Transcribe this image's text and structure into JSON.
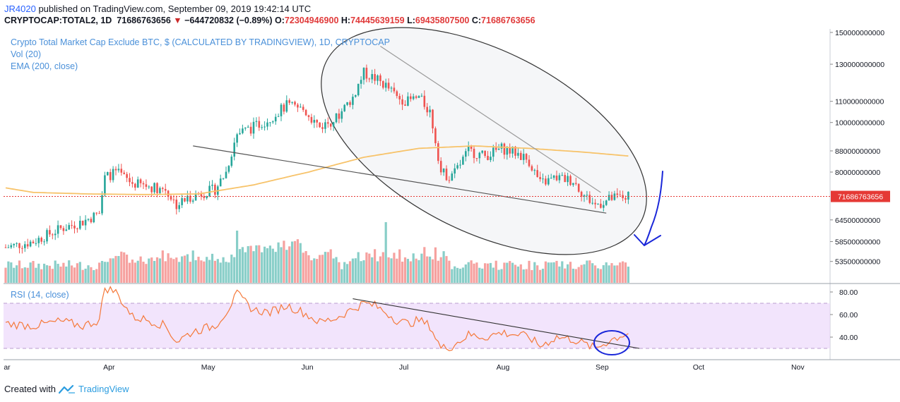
{
  "header": {
    "user": "JR4020",
    "published_text": "published on TradingView.com, September 09, 2019 19:42:14 UTC",
    "symbol_line": "CRYPTOCAP:TOTAL2, 1D",
    "last": "71686763656",
    "change": "−644720832 (−0.89%)",
    "o_label": "O:",
    "o": "72304946900",
    "h_label": "H:",
    "h": "74445639159",
    "l_label": "L:",
    "l": "69435807500",
    "c_label": "C:",
    "c": "71686763656"
  },
  "legend": {
    "title": "Crypto Total Market Cap Exclude BTC, $ (CALCULATED BY TRADINGVIEW), 1D, CRYPTOCAP",
    "volume": "Vol (20)",
    "ema": "EMA (200, close)",
    "rsi": "RSI (14, close)"
  },
  "footer": {
    "created_with": "Created with",
    "brand": "TradingView"
  },
  "colors": {
    "up": "#26a69a",
    "down": "#ef5350",
    "ema": "#f7c36a",
    "price_line": "#e53935",
    "rsi_line": "#f5793a",
    "rsi_band": "#ecd9fb",
    "annotation_blue": "#1a27d9"
  },
  "chart_data": [
    {
      "type": "candlestick",
      "title": "Crypto Total Market Cap Exclude BTC, $ (CALCULATED BY TRADINGVIEW), 1D, CRYPTOCAP",
      "scale": "log",
      "y_ticks": [
        150000000000,
        130000000000,
        110000000000,
        100000000000,
        88000000000,
        80000000000,
        64500000000,
        58500000000,
        53500000000
      ],
      "y_tick_labels": [
        "150000000000",
        "130000000000",
        "110000000000",
        "100000000000",
        "88000000000",
        "80000000000",
        "64500000000",
        "58500000000",
        "53500000000"
      ],
      "last_price": 71686763656,
      "last_price_label": "71686763656",
      "x_months": [
        "ar",
        "Apr",
        "May",
        "Jun",
        "Jul",
        "Aug",
        "Sep",
        "Oct",
        "Nov"
      ],
      "close_anchors": [
        [
          0,
          57000000000
        ],
        [
          10,
          58500000000
        ],
        [
          20,
          62000000000
        ],
        [
          28,
          64000000000
        ],
        [
          34,
          66500000000
        ],
        [
          36,
          78000000000
        ],
        [
          40,
          80000000000
        ],
        [
          46,
          76000000000
        ],
        [
          52,
          75000000000
        ],
        [
          58,
          74000000000
        ],
        [
          62,
          69000000000
        ],
        [
          68,
          72000000000
        ],
        [
          76,
          74000000000
        ],
        [
          80,
          80000000000
        ],
        [
          84,
          95000000000
        ],
        [
          90,
          98000000000
        ],
        [
          96,
          102000000000
        ],
        [
          102,
          108000000000
        ],
        [
          108,
          106000000000
        ],
        [
          114,
          98000000000
        ],
        [
          120,
          102000000000
        ],
        [
          126,
          112000000000
        ],
        [
          130,
          125000000000
        ],
        [
          134,
          122000000000
        ],
        [
          138,
          118000000000
        ],
        [
          142,
          112000000000
        ],
        [
          146,
          110000000000
        ],
        [
          150,
          112000000000
        ],
        [
          154,
          105000000000
        ],
        [
          158,
          80000000000
        ],
        [
          162,
          78000000000
        ],
        [
          168,
          88000000000
        ],
        [
          174,
          86000000000
        ],
        [
          180,
          89000000000
        ],
        [
          186,
          87000000000
        ],
        [
          190,
          84000000000
        ],
        [
          194,
          76000000000
        ],
        [
          200,
          78000000000
        ],
        [
          206,
          77000000000
        ],
        [
          210,
          72000000000
        ],
        [
          214,
          69000000000
        ],
        [
          220,
          71000000000
        ],
        [
          226,
          71700000000
        ]
      ],
      "ema_anchors": [
        [
          0,
          74500000000
        ],
        [
          10,
          73000000000
        ],
        [
          30,
          72500000000
        ],
        [
          50,
          72300000000
        ],
        [
          70,
          72500000000
        ],
        [
          90,
          75500000000
        ],
        [
          110,
          80000000000
        ],
        [
          130,
          85500000000
        ],
        [
          150,
          89000000000
        ],
        [
          170,
          90000000000
        ],
        [
          190,
          89000000000
        ],
        [
          210,
          87500000000
        ],
        [
          226,
          86000000000
        ]
      ],
      "trendlines": {
        "upper": [
          [
            136,
            141000000000
          ],
          [
            216,
            73000000000
          ]
        ],
        "lower": [
          [
            68,
            90000000000
          ],
          [
            218,
            66500000000
          ]
        ]
      }
    },
    {
      "type": "bar",
      "title": "Vol (20)",
      "description": "daily volume bars, colored by candle direction"
    },
    {
      "type": "line",
      "title": "RSI (14, close)",
      "y_ticks": [
        80,
        60,
        40
      ],
      "y_tick_labels": [
        "80.00",
        "60.00",
        "40.00"
      ],
      "band": [
        30,
        70
      ],
      "rsi_anchors": [
        [
          0,
          52
        ],
        [
          10,
          50
        ],
        [
          20,
          54
        ],
        [
          28,
          50
        ],
        [
          34,
          55
        ],
        [
          36,
          84
        ],
        [
          40,
          80
        ],
        [
          46,
          58
        ],
        [
          52,
          55
        ],
        [
          58,
          50
        ],
        [
          62,
          36
        ],
        [
          68,
          45
        ],
        [
          76,
          50
        ],
        [
          80,
          62
        ],
        [
          84,
          78
        ],
        [
          90,
          64
        ],
        [
          96,
          62
        ],
        [
          102,
          68
        ],
        [
          108,
          62
        ],
        [
          114,
          53
        ],
        [
          120,
          57
        ],
        [
          126,
          65
        ],
        [
          130,
          70
        ],
        [
          134,
          68
        ],
        [
          138,
          62
        ],
        [
          142,
          55
        ],
        [
          146,
          52
        ],
        [
          150,
          55
        ],
        [
          154,
          50
        ],
        [
          158,
          30
        ],
        [
          162,
          32
        ],
        [
          168,
          42
        ],
        [
          174,
          40
        ],
        [
          180,
          44
        ],
        [
          186,
          42
        ],
        [
          190,
          40
        ],
        [
          194,
          32
        ],
        [
          200,
          40
        ],
        [
          206,
          38
        ],
        [
          210,
          34
        ],
        [
          214,
          30
        ],
        [
          220,
          38
        ],
        [
          226,
          44
        ]
      ],
      "trendline": [
        [
          126,
          74
        ],
        [
          230,
          30
        ]
      ]
    }
  ]
}
